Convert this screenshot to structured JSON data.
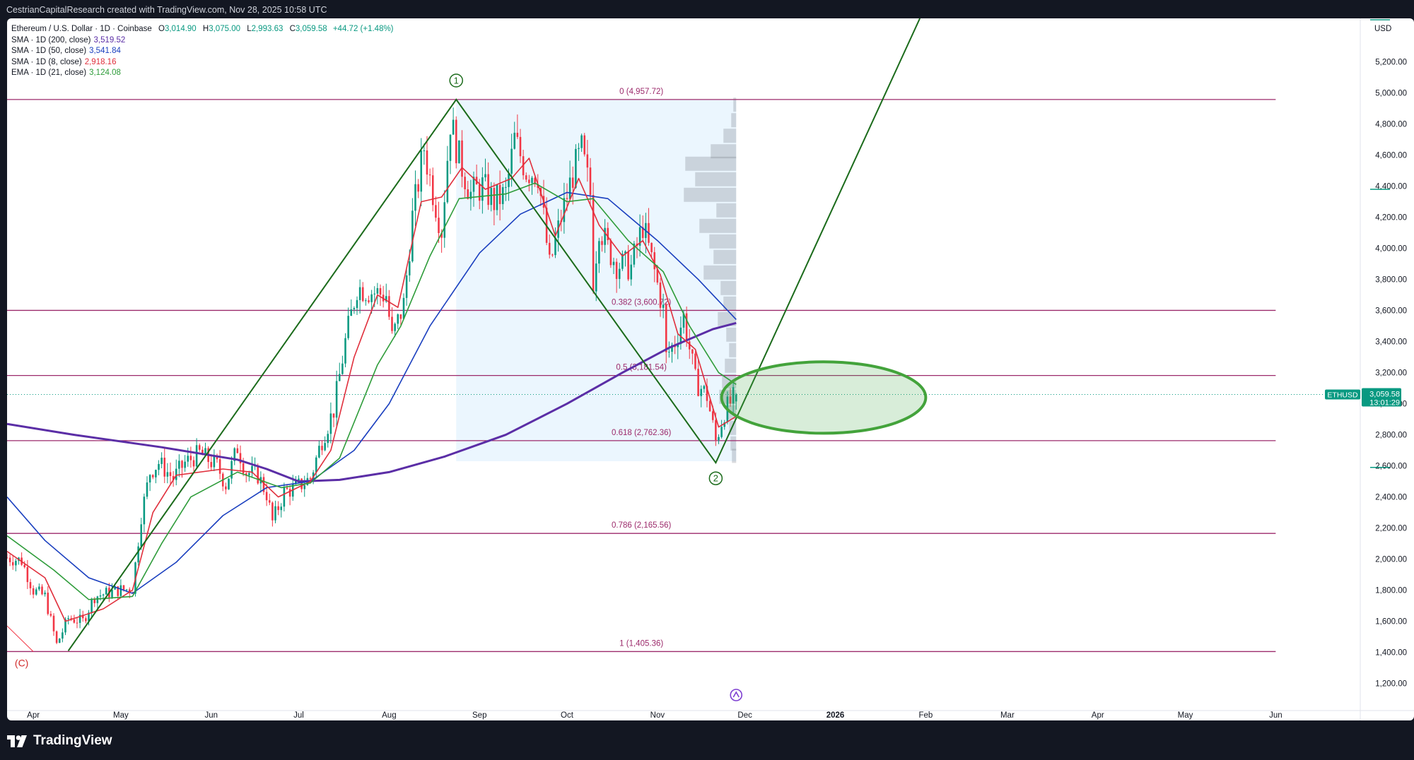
{
  "header": {
    "credit": "CestrianCapitalResearch created with TradingView.com, Nov 28, 2025 10:58 UTC"
  },
  "legend": {
    "symbol": "Ethereum / U.S. Dollar · 1D · Coinbase",
    "ohlc": [
      {
        "label": "O",
        "value": "3,014.90"
      },
      {
        "label": "H",
        "value": "3,075.00"
      },
      {
        "label": "L",
        "value": "2,993.63"
      },
      {
        "label": "C",
        "value": "3,059.58"
      }
    ],
    "change": "+44.72 (+1.48%)",
    "indicators": [
      {
        "label": "SMA · 1D (200, close)",
        "value": "3,519.52",
        "color": "#5b2ea6"
      },
      {
        "label": "SMA · 1D (50, close)",
        "value": "3,541.84",
        "color": "#1a3fbf"
      },
      {
        "label": "SMA · 1D (8, close)",
        "value": "2,918.16",
        "color": "#e02f3c"
      },
      {
        "label": "EMA · 1D (21, close)",
        "value": "3,124.08",
        "color": "#2e9c3a"
      }
    ]
  },
  "price_tag": {
    "symbol": "ETHUSD",
    "price": "3,059.58",
    "countdown": "13:01:29"
  },
  "footer": {
    "brand": "TradingView"
  },
  "colors": {
    "up": "#089981",
    "down": "#f23645",
    "fib": "#9c2a6b",
    "wave": "#1b6b1b",
    "ellipse_fill": "rgba(76,175,80,0.22)",
    "ellipse_stroke": "#43a33b",
    "range_box": "rgba(33,150,243,0.09)"
  },
  "chart_data": {
    "type": "candlestick",
    "y_axis": {
      "currency": "USD",
      "ylim": [
        1080,
        5480
      ],
      "ticks": [
        1200,
        1400,
        1600,
        1800,
        2000,
        2200,
        2400,
        2600,
        2800,
        3000,
        3200,
        3400,
        3600,
        3800,
        4000,
        4200,
        4400,
        4600,
        4800,
        5000,
        5200
      ],
      "tick_labels": [
        "1,200.00",
        "1,400.00",
        "1,600.00",
        "1,800.00",
        "2,000.00",
        "2,200.00",
        "2,400.00",
        "2,600.00",
        "2,800.00",
        "3,000.00",
        "3,200.00",
        "3,400.00",
        "3,600.00",
        "3,800.00",
        "4,000.00",
        "4,200.00",
        "4,400.00",
        "4,600.00",
        "4,800.00",
        "5,000.00",
        "5,200.00"
      ]
    },
    "x_axis": {
      "range": [
        "2025-03-23",
        "2026-06-30"
      ],
      "ticks": [
        {
          "date": "2025-04-01",
          "label": "Apr"
        },
        {
          "date": "2025-05-01",
          "label": "May"
        },
        {
          "date": "2025-06-01",
          "label": "Jun"
        },
        {
          "date": "2025-07-01",
          "label": "Jul"
        },
        {
          "date": "2025-08-01",
          "label": "Aug"
        },
        {
          "date": "2025-09-01",
          "label": "Sep"
        },
        {
          "date": "2025-10-01",
          "label": "Oct"
        },
        {
          "date": "2025-11-01",
          "label": "Nov"
        },
        {
          "date": "2025-12-01",
          "label": "Dec"
        },
        {
          "date": "2026-01-01",
          "label": "2026",
          "bold": true
        },
        {
          "date": "2026-02-01",
          "label": "Feb"
        },
        {
          "date": "2026-03-01",
          "label": "Mar"
        },
        {
          "date": "2026-04-01",
          "label": "Apr"
        },
        {
          "date": "2026-05-01",
          "label": "May"
        },
        {
          "date": "2026-06-01",
          "label": "Jun"
        }
      ]
    },
    "price_anchors": [
      [
        "2025-03-23",
        2010
      ],
      [
        "2025-03-28",
        1990
      ],
      [
        "2025-04-01",
        1800
      ],
      [
        "2025-04-05",
        1760
      ],
      [
        "2025-04-09",
        1450
      ],
      [
        "2025-04-13",
        1620
      ],
      [
        "2025-04-18",
        1600
      ],
      [
        "2025-04-22",
        1760
      ],
      [
        "2025-04-30",
        1800
      ],
      [
        "2025-05-05",
        1810
      ],
      [
        "2025-05-08",
        2280
      ],
      [
        "2025-05-11",
        2560
      ],
      [
        "2025-05-14",
        2620
      ],
      [
        "2025-05-19",
        2520
      ],
      [
        "2025-05-23",
        2620
      ],
      [
        "2025-05-28",
        2680
      ],
      [
        "2025-06-03",
        2600
      ],
      [
        "2025-06-06",
        2480
      ],
      [
        "2025-06-10",
        2720
      ],
      [
        "2025-06-13",
        2560
      ],
      [
        "2025-06-17",
        2540
      ],
      [
        "2025-06-20",
        2420
      ],
      [
        "2025-06-22",
        2240
      ],
      [
        "2025-06-26",
        2430
      ],
      [
        "2025-07-01",
        2470
      ],
      [
        "2025-07-05",
        2520
      ],
      [
        "2025-07-09",
        2770
      ],
      [
        "2025-07-13",
        2960
      ],
      [
        "2025-07-17",
        3400
      ],
      [
        "2025-07-21",
        3750
      ],
      [
        "2025-07-26",
        3720
      ],
      [
        "2025-07-31",
        3700
      ],
      [
        "2025-08-02",
        3420
      ],
      [
        "2025-08-06",
        3640
      ],
      [
        "2025-08-09",
        4200
      ],
      [
        "2025-08-13",
        4650
      ],
      [
        "2025-08-15",
        4450
      ],
      [
        "2025-08-19",
        4120
      ],
      [
        "2025-08-22",
        4820
      ],
      [
        "2025-08-25",
        4580
      ],
      [
        "2025-08-29",
        4350
      ],
      [
        "2025-09-02",
        4400
      ],
      [
        "2025-09-06",
        4300
      ],
      [
        "2025-09-10",
        4350
      ],
      [
        "2025-09-13",
        4700
      ],
      [
        "2025-09-17",
        4500
      ],
      [
        "2025-09-21",
        4480
      ],
      [
        "2025-09-23",
        4190
      ],
      [
        "2025-09-25",
        3880
      ],
      [
        "2025-09-29",
        4200
      ],
      [
        "2025-10-03",
        4480
      ],
      [
        "2025-10-06",
        4630
      ],
      [
        "2025-10-09",
        4350
      ],
      [
        "2025-10-10",
        3800
      ],
      [
        "2025-10-12",
        4150
      ],
      [
        "2025-10-15",
        4000
      ],
      [
        "2025-10-18",
        3900
      ],
      [
        "2025-10-23",
        3880
      ],
      [
        "2025-10-27",
        4150
      ],
      [
        "2025-10-31",
        3850
      ],
      [
        "2025-11-03",
        3600
      ],
      [
        "2025-11-04",
        3300
      ],
      [
        "2025-11-07",
        3400
      ],
      [
        "2025-11-10",
        3560
      ],
      [
        "2025-11-14",
        3150
      ],
      [
        "2025-11-18",
        3050
      ],
      [
        "2025-11-21",
        2760
      ],
      [
        "2025-11-24",
        2950
      ],
      [
        "2025-11-28",
        3059.58
      ]
    ],
    "last_candle": {
      "date": "2025-11-28",
      "open": 3014.9,
      "high": 3075.0,
      "low": 2993.63,
      "close": 3059.58
    },
    "moving_averages": {
      "sma200": {
        "color": "#5b2ea6",
        "points": [
          [
            "2025-03-23",
            2870
          ],
          [
            "2025-04-15",
            2800
          ],
          [
            "2025-05-15",
            2720
          ],
          [
            "2025-06-10",
            2640
          ],
          [
            "2025-06-20",
            2580
          ],
          [
            "2025-07-01",
            2500
          ],
          [
            "2025-07-15",
            2510
          ],
          [
            "2025-08-01",
            2560
          ],
          [
            "2025-08-20",
            2660
          ],
          [
            "2025-09-10",
            2800
          ],
          [
            "2025-10-01",
            3000
          ],
          [
            "2025-10-20",
            3200
          ],
          [
            "2025-11-05",
            3360
          ],
          [
            "2025-11-20",
            3480
          ],
          [
            "2025-11-28",
            3519.52
          ]
        ]
      },
      "sma50": {
        "color": "#1a3fbf",
        "points": [
          [
            "2025-03-23",
            2400
          ],
          [
            "2025-04-05",
            2120
          ],
          [
            "2025-04-20",
            1880
          ],
          [
            "2025-05-05",
            1780
          ],
          [
            "2025-05-20",
            1980
          ],
          [
            "2025-06-05",
            2280
          ],
          [
            "2025-06-20",
            2460
          ],
          [
            "2025-07-05",
            2500
          ],
          [
            "2025-07-20",
            2700
          ],
          [
            "2025-08-01",
            3000
          ],
          [
            "2025-08-15",
            3500
          ],
          [
            "2025-09-01",
            3970
          ],
          [
            "2025-09-15",
            4220
          ],
          [
            "2025-10-01",
            4360
          ],
          [
            "2025-10-15",
            4320
          ],
          [
            "2025-11-01",
            4050
          ],
          [
            "2025-11-15",
            3800
          ],
          [
            "2025-11-28",
            3541.84
          ]
        ]
      },
      "sma8": {
        "color": "#e02f3c",
        "points": [
          [
            "2025-03-23",
            2050
          ],
          [
            "2025-04-05",
            1880
          ],
          [
            "2025-04-12",
            1600
          ],
          [
            "2025-04-25",
            1680
          ],
          [
            "2025-05-05",
            1800
          ],
          [
            "2025-05-12",
            2300
          ],
          [
            "2025-05-20",
            2540
          ],
          [
            "2025-06-05",
            2580
          ],
          [
            "2025-06-15",
            2560
          ],
          [
            "2025-06-24",
            2400
          ],
          [
            "2025-07-05",
            2500
          ],
          [
            "2025-07-12",
            2700
          ],
          [
            "2025-07-20",
            3300
          ],
          [
            "2025-07-28",
            3700
          ],
          [
            "2025-08-04",
            3620
          ],
          [
            "2025-08-12",
            4300
          ],
          [
            "2025-08-19",
            4330
          ],
          [
            "2025-08-26",
            4520
          ],
          [
            "2025-09-03",
            4380
          ],
          [
            "2025-09-12",
            4450
          ],
          [
            "2025-09-18",
            4580
          ],
          [
            "2025-09-27",
            4080
          ],
          [
            "2025-10-05",
            4450
          ],
          [
            "2025-10-12",
            4150
          ],
          [
            "2025-10-20",
            3950
          ],
          [
            "2025-10-27",
            4050
          ],
          [
            "2025-11-02",
            3830
          ],
          [
            "2025-11-08",
            3450
          ],
          [
            "2025-11-14",
            3350
          ],
          [
            "2025-11-22",
            2850
          ],
          [
            "2025-11-28",
            2918.16
          ]
        ]
      },
      "ema21": {
        "color": "#2e9c3a",
        "points": [
          [
            "2025-03-23",
            2150
          ],
          [
            "2025-04-08",
            1930
          ],
          [
            "2025-04-20",
            1740
          ],
          [
            "2025-05-05",
            1760
          ],
          [
            "2025-05-15",
            2100
          ],
          [
            "2025-05-25",
            2400
          ],
          [
            "2025-06-10",
            2560
          ],
          [
            "2025-06-25",
            2460
          ],
          [
            "2025-07-05",
            2490
          ],
          [
            "2025-07-15",
            2650
          ],
          [
            "2025-07-28",
            3250
          ],
          [
            "2025-08-05",
            3500
          ],
          [
            "2025-08-15",
            3950
          ],
          [
            "2025-08-25",
            4320
          ],
          [
            "2025-09-10",
            4350
          ],
          [
            "2025-09-20",
            4420
          ],
          [
            "2025-10-01",
            4300
          ],
          [
            "2025-10-10",
            4320
          ],
          [
            "2025-10-22",
            4050
          ],
          [
            "2025-11-03",
            3850
          ],
          [
            "2025-11-12",
            3500
          ],
          [
            "2025-11-22",
            3200
          ],
          [
            "2025-11-28",
            3124.08
          ]
        ]
      }
    },
    "fibonacci": {
      "levels": [
        {
          "label": "0 (4,957.72)",
          "price": 4957.72
        },
        {
          "label": "0.382 (3,600.72)",
          "price": 3600.72
        },
        {
          "label": "0.5 (3,181.54)",
          "price": 3181.54
        },
        {
          "label": "0.618 (2,762.36)",
          "price": 2762.36
        },
        {
          "label": "0.786 (2,165.56)",
          "price": 2165.56
        },
        {
          "label": "1 (1,405.36)",
          "price": 1405.36
        }
      ],
      "start_date": "2025-03-23",
      "end_date": "2026-06-01"
    },
    "range_box": {
      "start": "2025-08-24",
      "end": "2025-11-28",
      "top": 4957.72,
      "bottom": 2630
    },
    "wave_path": [
      [
        "2025-04-13",
        1410
      ],
      [
        "2025-08-24",
        4957.72
      ],
      [
        "2025-11-21",
        2620
      ],
      [
        "2026-01-30",
        5480
      ]
    ],
    "wave_labels": [
      {
        "text": "1",
        "date": "2025-08-24",
        "price": 5080
      },
      {
        "text": "2",
        "date": "2025-11-21",
        "price": 2520
      }
    ],
    "c_label": {
      "text": "(C)",
      "date": "2025-03-28",
      "price": 1310
    },
    "ellipse": {
      "center_date": "2025-12-28",
      "center_price": 3040,
      "rx_days": 35,
      "ry_price": 230
    },
    "current_price": 3059.58,
    "right_markers": [
      4380,
      2590
    ],
    "volume_profile": [
      {
        "price": 4920,
        "width": 4
      },
      {
        "price": 4820,
        "width": 7
      },
      {
        "price": 4720,
        "width": 18
      },
      {
        "price": 4620,
        "width": 36
      },
      {
        "price": 4540,
        "width": 72
      },
      {
        "price": 4440,
        "width": 58
      },
      {
        "price": 4340,
        "width": 74
      },
      {
        "price": 4240,
        "width": 28
      },
      {
        "price": 4140,
        "width": 52
      },
      {
        "price": 4040,
        "width": 38
      },
      {
        "price": 3940,
        "width": 32
      },
      {
        "price": 3840,
        "width": 46
      },
      {
        "price": 3740,
        "width": 22
      },
      {
        "price": 3640,
        "width": 18
      },
      {
        "price": 3540,
        "width": 26
      },
      {
        "price": 3440,
        "width": 14
      },
      {
        "price": 3340,
        "width": 10
      },
      {
        "price": 3240,
        "width": 16
      },
      {
        "price": 3140,
        "width": 20
      },
      {
        "price": 3040,
        "width": 24
      },
      {
        "price": 2940,
        "width": 14
      },
      {
        "price": 2840,
        "width": 10
      },
      {
        "price": 2740,
        "width": 8
      },
      {
        "price": 2660,
        "width": 6
      }
    ]
  }
}
